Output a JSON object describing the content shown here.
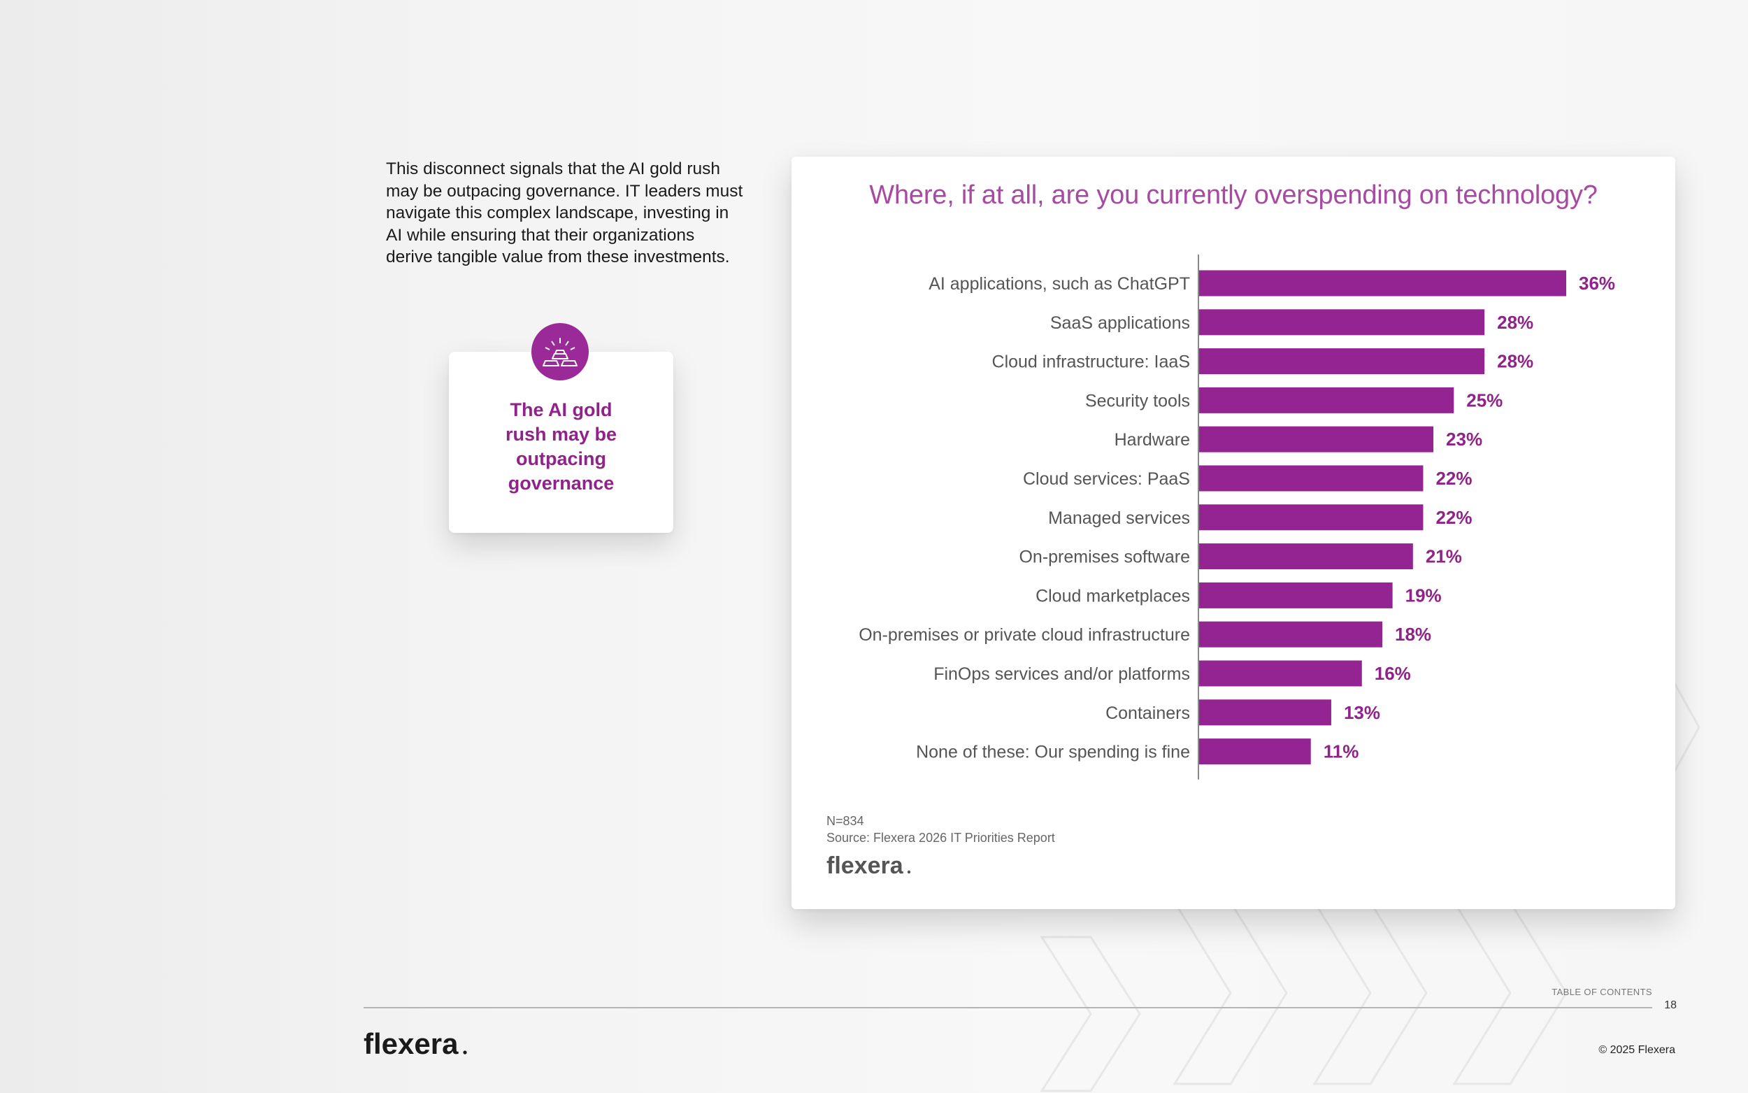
{
  "intro": {
    "lines": [
      "This disconnect signals that the AI gold rush",
      "may be outpacing governance. IT leaders must",
      "navigate this complex landscape, investing in",
      "AI while ensuring that their organizations",
      "derive tangible value from these investments."
    ]
  },
  "callout": {
    "icon": "gold-bars-icon",
    "lines": [
      "The AI gold",
      "rush may be",
      "outpacing",
      "governance"
    ]
  },
  "chart_data": {
    "type": "bar",
    "orientation": "horizontal",
    "title": "Where, if at all, are you currently overspending on technology?",
    "categories": [
      "AI applications, such as ChatGPT",
      "SaaS applications",
      "Cloud infrastructure: IaaS",
      "Security tools",
      "Hardware",
      "Cloud services: PaaS",
      "Managed services",
      "On-premises software",
      "Cloud marketplaces",
      "On-premises or private cloud infrastructure",
      "FinOps services and/or platforms",
      "Containers",
      "None of these: Our spending is fine"
    ],
    "values": [
      36,
      28,
      28,
      25,
      23,
      22,
      22,
      21,
      19,
      18,
      16,
      13,
      11
    ],
    "value_labels": [
      "36%",
      "28%",
      "28%",
      "25%",
      "23%",
      "22%",
      "22%",
      "21%",
      "19%",
      "18%",
      "16%",
      "13%",
      "11%"
    ],
    "xlim": [
      0,
      36
    ],
    "xlabel": "",
    "ylabel": "",
    "grid": false,
    "bar_color": "#952493",
    "label_color": "#8f2389"
  },
  "notes": {
    "n": "N=834",
    "source": "Source: Flexera 2026 IT Priorities Report"
  },
  "brand": {
    "name": "flexera"
  },
  "footer": {
    "toc": "TABLE OF CONTENTS",
    "page": "18",
    "copyright": "© 2025 Flexera"
  },
  "colors": {
    "accent": "#952493",
    "title": "#a64aa2",
    "badge": "#9b2a99"
  }
}
